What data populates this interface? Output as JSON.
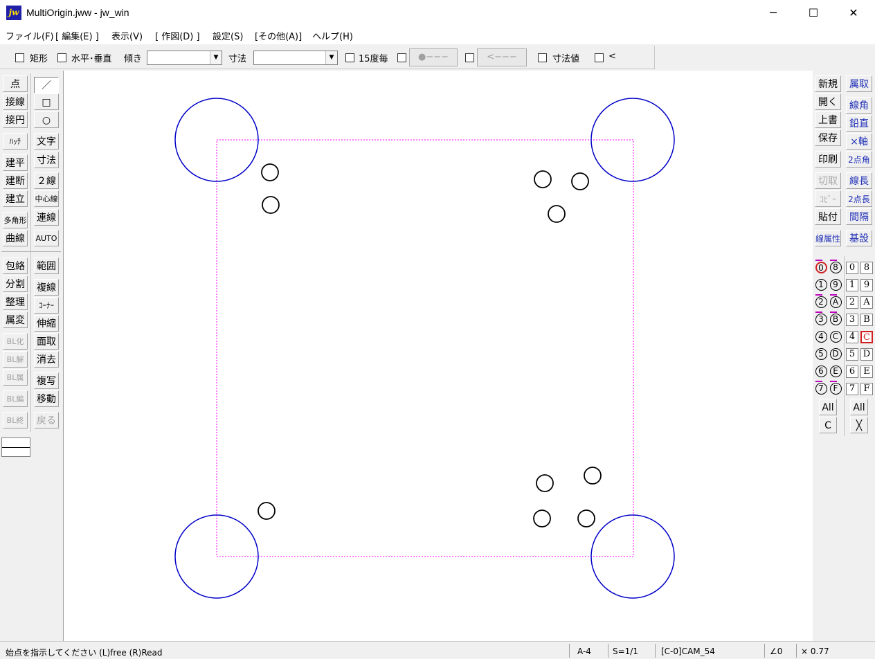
{
  "window": {
    "app_icon": "jw",
    "title": "MultiOrigin.jww - jw_win",
    "minimize": "─",
    "maximize": "☐",
    "close": "✕"
  },
  "menu": [
    "ファイル(F)",
    "[ 編集(E) ]",
    "表示(V)",
    "[ 作図(D) ]",
    "設定(S)",
    "[その他(A)]",
    "ヘルプ(H)"
  ],
  "toolbar": {
    "rect_label": "矩形",
    "hv_label": "水平･垂直",
    "tilt_label": "傾き",
    "tilt_value": "",
    "dim_label": "寸法",
    "dim_value": "",
    "deg15_label": "15度毎",
    "btn1_label": "●−−−",
    "btn2_label": "<−−−",
    "dimval_label": "寸法値",
    "lt_label": "<"
  },
  "left_tools": {
    "col1": [
      "点",
      "接線",
      "接円",
      "ﾊｯﾁ",
      "建平",
      "建断",
      "建立",
      "多角形",
      "曲線",
      "包絡",
      "分割",
      "整理",
      "属変",
      "BL化",
      "BL解",
      "BL属",
      "BL編",
      "BL終"
    ],
    "col2": [
      "／",
      "□",
      "○",
      "文字",
      "寸法",
      "２線",
      "中心線",
      "連線",
      "AUTO",
      "範囲",
      "複線",
      "ｺｰﾅｰ",
      "伸縮",
      "面取",
      "消去",
      "複写",
      "移動",
      "戻る"
    ]
  },
  "right_tools": {
    "col1": [
      "新規",
      "開く",
      "上書",
      "保存",
      "印刷",
      "切取",
      "ｺﾋﾟｰ",
      "貼付",
      "線属性"
    ],
    "col2": [
      "属取",
      "線角",
      "鉛直",
      "×軸",
      "2点角",
      "線長",
      "2点長",
      "間隔",
      "基設"
    ]
  },
  "layers": {
    "group_circ_left": [
      "0",
      "1",
      "2",
      "3",
      "4",
      "5",
      "6",
      "7"
    ],
    "group_circ_right": [
      "8",
      "9",
      "A",
      "B",
      "C",
      "D",
      "E",
      "F"
    ],
    "layer_box_left": [
      "0",
      "1",
      "2",
      "3",
      "4",
      "5",
      "6",
      "7"
    ],
    "layer_box_right": [
      "8",
      "9",
      "A",
      "B",
      "C",
      "D",
      "E",
      "F"
    ],
    "all_label": "All",
    "c_label": "C",
    "x_label": "╳"
  },
  "colors": {
    "large_circle": "#0000c8",
    "small_circle": "#000000",
    "frame": "#ff00ff"
  },
  "status": {
    "message": "始点を指示してください (L)free (R)Read",
    "paper": "A-4",
    "scale": "S=1/1",
    "layer": "[C-0]CAM_54",
    "angle": "∠0",
    "zoom": "× 0.77"
  }
}
